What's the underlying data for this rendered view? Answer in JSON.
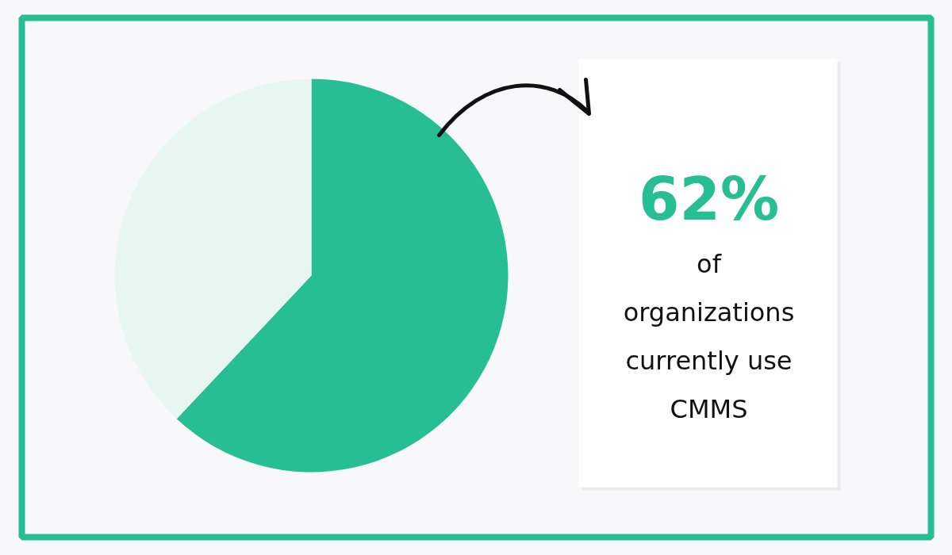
{
  "chart_data": {
    "type": "pie",
    "categories": [
      null,
      null
    ],
    "values": [
      62,
      38
    ],
    "colors": [
      "#27be93",
      "#e8f6f2"
    ],
    "value_labels": [
      "62%",
      null
    ],
    "annotations": [
      "of organizations currently use CMMS"
    ]
  }
}
